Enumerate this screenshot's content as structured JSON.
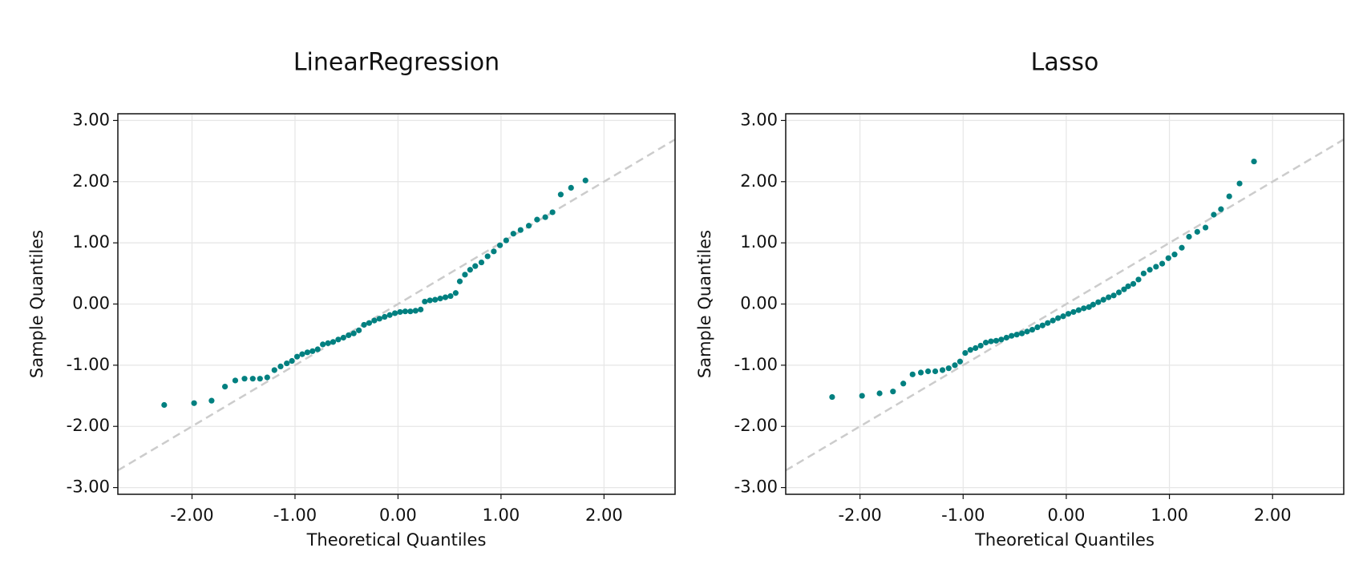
{
  "chart_data": [
    {
      "type": "scatter",
      "title": "LinearRegression",
      "x_label": "Theoretical Quantiles",
      "y_label": "Sample Quantiles",
      "color": "#008080",
      "grid": true,
      "xlim": [
        -2.72,
        2.69
      ],
      "ylim": [
        -3.11,
        3.11
      ],
      "xticks": [
        {
          "value": -2,
          "label": "-2.00"
        },
        {
          "value": -1,
          "label": "-1.00"
        },
        {
          "value": 0,
          "label": "0.00"
        },
        {
          "value": 1,
          "label": "1.00"
        },
        {
          "value": 2,
          "label": "2.00"
        }
      ],
      "yticks": [
        {
          "value": -3,
          "label": "-3.00"
        },
        {
          "value": -2,
          "label": "-2.00"
        },
        {
          "value": -1,
          "label": "-1.00"
        },
        {
          "value": 0,
          "label": "0.00"
        },
        {
          "value": 1,
          "label": "1.00"
        },
        {
          "value": 2,
          "label": "2.00"
        },
        {
          "value": 3,
          "label": "3.00"
        }
      ],
      "reference_line": {
        "x": [
          -2.72,
          2.69
        ],
        "y": [
          -2.72,
          2.69
        ],
        "color": "#cccccc"
      },
      "x": [
        -2.27,
        -1.98,
        -1.81,
        -1.68,
        -1.58,
        -1.49,
        -1.41,
        -1.34,
        -1.27,
        -1.2,
        -1.14,
        -1.08,
        -1.03,
        -0.98,
        -0.93,
        -0.88,
        -0.83,
        -0.78,
        -0.73,
        -0.68,
        -0.63,
        -0.58,
        -0.53,
        -0.48,
        -0.43,
        -0.38,
        -0.33,
        -0.28,
        -0.23,
        -0.18,
        -0.13,
        -0.08,
        -0.03,
        0.02,
        0.07,
        0.12,
        0.17,
        0.22,
        0.26,
        0.31,
        0.36,
        0.41,
        0.46,
        0.51,
        0.56,
        0.6,
        0.65,
        0.7,
        0.75,
        0.81,
        0.87,
        0.93,
        0.99,
        1.05,
        1.12,
        1.19,
        1.27,
        1.35,
        1.43,
        1.5,
        1.58,
        1.68,
        1.82
      ],
      "values": [
        -1.65,
        -1.62,
        -1.58,
        -1.35,
        -1.25,
        -1.22,
        -1.22,
        -1.22,
        -1.2,
        -1.08,
        -1.02,
        -0.97,
        -0.93,
        -0.86,
        -0.82,
        -0.79,
        -0.77,
        -0.74,
        -0.66,
        -0.64,
        -0.62,
        -0.58,
        -0.55,
        -0.51,
        -0.48,
        -0.43,
        -0.34,
        -0.31,
        -0.27,
        -0.24,
        -0.21,
        -0.18,
        -0.15,
        -0.13,
        -0.12,
        -0.12,
        -0.11,
        -0.09,
        0.04,
        0.06,
        0.07,
        0.09,
        0.11,
        0.13,
        0.18,
        0.37,
        0.48,
        0.56,
        0.62,
        0.68,
        0.78,
        0.86,
        0.96,
        1.04,
        1.15,
        1.21,
        1.28,
        1.38,
        1.42,
        1.5,
        1.79,
        1.9,
        2.02
      ]
    },
    {
      "type": "scatter",
      "title": "Lasso",
      "x_label": "Theoretical Quantiles",
      "y_label": "Sample Quantiles",
      "color": "#008080",
      "grid": true,
      "xlim": [
        -2.72,
        2.69
      ],
      "ylim": [
        -3.11,
        3.11
      ],
      "xticks": [
        {
          "value": -2,
          "label": "-2.00"
        },
        {
          "value": -1,
          "label": "-1.00"
        },
        {
          "value": 0,
          "label": "0.00"
        },
        {
          "value": 1,
          "label": "1.00"
        },
        {
          "value": 2,
          "label": "2.00"
        }
      ],
      "yticks": [
        {
          "value": -3,
          "label": "-3.00"
        },
        {
          "value": -2,
          "label": "-2.00"
        },
        {
          "value": -1,
          "label": "-1.00"
        },
        {
          "value": 0,
          "label": "0.00"
        },
        {
          "value": 1,
          "label": "1.00"
        },
        {
          "value": 2,
          "label": "2.00"
        },
        {
          "value": 3,
          "label": "3.00"
        }
      ],
      "reference_line": {
        "x": [
          -2.72,
          2.69
        ],
        "y": [
          -2.72,
          2.69
        ],
        "color": "#cccccc"
      },
      "x": [
        -2.27,
        -1.98,
        -1.81,
        -1.68,
        -1.58,
        -1.49,
        -1.41,
        -1.34,
        -1.27,
        -1.2,
        -1.14,
        -1.08,
        -1.03,
        -0.98,
        -0.93,
        -0.88,
        -0.83,
        -0.78,
        -0.73,
        -0.68,
        -0.63,
        -0.58,
        -0.53,
        -0.48,
        -0.43,
        -0.38,
        -0.33,
        -0.28,
        -0.23,
        -0.18,
        -0.13,
        -0.08,
        -0.03,
        0.02,
        0.07,
        0.12,
        0.17,
        0.22,
        0.26,
        0.31,
        0.36,
        0.41,
        0.46,
        0.51,
        0.56,
        0.6,
        0.65,
        0.7,
        0.75,
        0.81,
        0.87,
        0.93,
        0.99,
        1.05,
        1.12,
        1.19,
        1.27,
        1.35,
        1.43,
        1.5,
        1.58,
        1.68,
        1.82
      ],
      "values": [
        -1.52,
        -1.5,
        -1.46,
        -1.43,
        -1.3,
        -1.15,
        -1.12,
        -1.1,
        -1.1,
        -1.08,
        -1.05,
        -1.0,
        -0.94,
        -0.8,
        -0.75,
        -0.72,
        -0.68,
        -0.63,
        -0.61,
        -0.6,
        -0.58,
        -0.55,
        -0.52,
        -0.5,
        -0.48,
        -0.45,
        -0.42,
        -0.38,
        -0.35,
        -0.31,
        -0.27,
        -0.23,
        -0.2,
        -0.16,
        -0.13,
        -0.1,
        -0.07,
        -0.05,
        -0.01,
        0.03,
        0.07,
        0.11,
        0.14,
        0.19,
        0.24,
        0.29,
        0.33,
        0.4,
        0.5,
        0.56,
        0.61,
        0.66,
        0.75,
        0.81,
        0.92,
        1.1,
        1.18,
        1.25,
        1.46,
        1.55,
        1.76,
        1.97,
        2.33
      ]
    }
  ]
}
